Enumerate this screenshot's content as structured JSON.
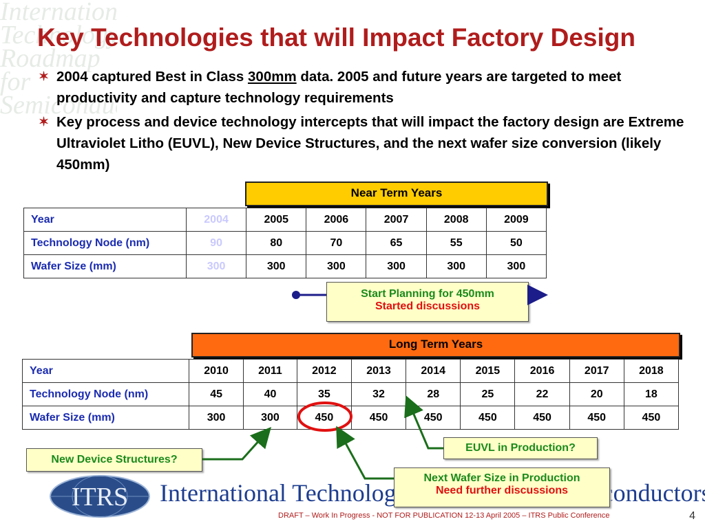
{
  "slide": {
    "title": "Key Technologies that will Impact Factory Design",
    "bullets": [
      {
        "pre": "2004 captured Best in Class ",
        "underlined": "300mm",
        "post": " data.  2005 and future years are targeted to meet productivity and capture technology requirements"
      },
      {
        "pre": "Key process and device technology intercepts that will impact the factory design are Extreme Ultraviolet Litho (EUVL), New Device Structures, and the next wafer size conversion (likely 450mm)",
        "underlined": "",
        "post": ""
      }
    ],
    "watermark": "International Technology Roadmap for Semiconductors"
  },
  "near_term": {
    "header": "Near Term Years",
    "row_labels": [
      "Year",
      "Technology Node (nm)",
      "Wafer Size (mm)"
    ],
    "years": [
      "2004",
      "2005",
      "2006",
      "2007",
      "2008",
      "2009"
    ],
    "nodes": [
      "90",
      "80",
      "70",
      "65",
      "55",
      "50"
    ],
    "wafer": [
      "300",
      "300",
      "300",
      "300",
      "300",
      "300"
    ]
  },
  "long_term": {
    "header": "Long Term Years",
    "row_labels": [
      "Year",
      "Technology Node (nm)",
      "Wafer Size (mm)"
    ],
    "years": [
      "2010",
      "2011",
      "2012",
      "2013",
      "2014",
      "2015",
      "2016",
      "2017",
      "2018"
    ],
    "nodes": [
      "45",
      "40",
      "35",
      "32",
      "28",
      "25",
      "22",
      "20",
      "18"
    ],
    "wafer": [
      "300",
      "300",
      "450",
      "450",
      "450",
      "450",
      "450",
      "450",
      "450"
    ]
  },
  "callouts": {
    "planning_line1": "Start Planning for 450mm",
    "planning_line2": "Started discussions",
    "euvl": "EUVL in Production?",
    "new_device": "New Device Structures?",
    "next_wafer_line1": "Next Wafer Size in Production",
    "next_wafer_line2": "Need further discussions"
  },
  "branding": {
    "logo_text": "ITRS",
    "banner": "International Technology Roadmap for Semiconductors",
    "footer": "DRAFT – Work In Progress - NOT FOR PUBLICATION     12-13 April 2005 – ITRS Public Conference",
    "page_number": "4"
  },
  "colors": {
    "title_red": "#b01c1c",
    "near_term_header": "#ffcc00",
    "long_term_header": "#ff6a10",
    "row_label_blue": "#1a2bb0",
    "callout_green": "#1b8a1b",
    "callout_red": "#e01010",
    "arrow_navy": "#1c1c8a"
  }
}
